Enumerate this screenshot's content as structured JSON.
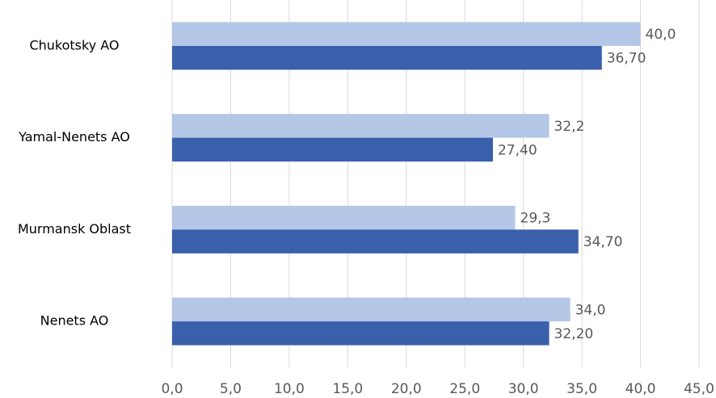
{
  "chart_data": {
    "type": "bar",
    "orientation": "horizontal",
    "categories": [
      "Chukotsky AO",
      "Yamal-Nenets AO",
      "Murmansk Oblast",
      "Nenets AO"
    ],
    "series": [
      {
        "color": "#b4c7e7",
        "values": [
          40.0,
          32.2,
          29.3,
          34.0
        ],
        "value_labels": [
          "40,0",
          "32,2",
          "29,3",
          "34,0"
        ]
      },
      {
        "color": "#3a5fab",
        "values": [
          36.7,
          27.4,
          34.7,
          32.2
        ],
        "value_labels": [
          "36,70",
          "27,40",
          "34,70",
          "32,20"
        ]
      }
    ],
    "xlim": [
      0,
      45
    ],
    "xticks": [
      {
        "value": 0,
        "label": "0,0"
      },
      {
        "value": 5,
        "label": "5,0"
      },
      {
        "value": 10,
        "label": "10,0"
      },
      {
        "value": 15,
        "label": "15,0"
      },
      {
        "value": 20,
        "label": "20,0"
      },
      {
        "value": 25,
        "label": "25,0"
      },
      {
        "value": 30,
        "label": "30,0"
      },
      {
        "value": 35,
        "label": "35,0"
      },
      {
        "value": 40,
        "label": "40,0"
      },
      {
        "value": 45,
        "label": "45,0"
      }
    ],
    "grid": true
  }
}
